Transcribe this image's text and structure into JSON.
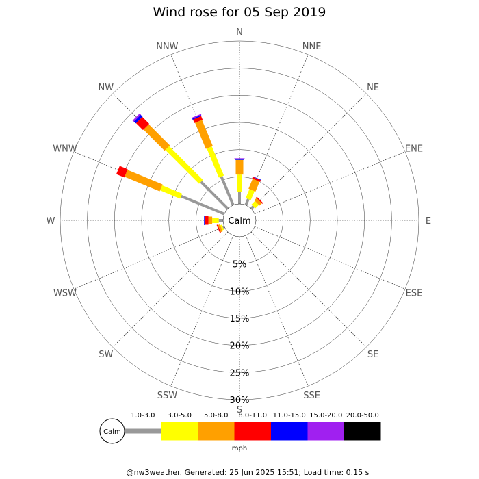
{
  "title": "Wind rose for 05 Sep 2019",
  "footer": "@nw3weather. Generated: 25 Jun 2025 15:51; Load time: 0.15 s",
  "calm_label": "Calm",
  "legend_calm_label": "Calm",
  "unit_label": "mph",
  "directions": [
    "N",
    "NNE",
    "NE",
    "ENE",
    "E",
    "ESE",
    "SE",
    "SSE",
    "S",
    "SSW",
    "SW",
    "WSW",
    "W",
    "WNW",
    "NW",
    "NNW"
  ],
  "ring_labels": [
    "5%",
    "10%",
    "15%",
    "20%",
    "25%",
    "30%"
  ],
  "chart_data": {
    "type": "wind-rose",
    "title": "Wind rose for 05 Sep 2019",
    "unit": "mph",
    "rmax_percent": 30,
    "rings_percent": [
      5,
      10,
      15,
      20,
      25,
      30
    ],
    "speed_bins": [
      {
        "label": "1.0-3.0",
        "color": "#999999"
      },
      {
        "label": "3.0-5.0",
        "color": "#ffff00"
      },
      {
        "label": "5.0-8.0",
        "color": "#ffa000"
      },
      {
        "label": "8.0-11.0",
        "color": "#ff0000"
      },
      {
        "label": "11.0-15.0",
        "color": "#0000ff"
      },
      {
        "label": "15.0-20.0",
        "color": "#a020f0"
      },
      {
        "label": "20.0-50.0",
        "color": "#000000"
      }
    ],
    "cumulative_percent": {
      "N": [
        2.2,
        5.4,
        8.1,
        8.1,
        8.3,
        8.4,
        8.4
      ],
      "NNE": [
        1.2,
        3.0,
        5.0,
        5.3,
        5.4,
        5.4,
        5.4
      ],
      "NE": [
        0.6,
        1.5,
        2.1,
        2.3,
        2.3,
        2.3,
        2.3
      ],
      "ENE": [
        0,
        0,
        0,
        0,
        0,
        0,
        0
      ],
      "E": [
        0,
        0,
        0,
        0,
        0,
        0,
        0
      ],
      "ESE": [
        0,
        0,
        0,
        0,
        0,
        0,
        0
      ],
      "SE": [
        0,
        0,
        0,
        0,
        0,
        0,
        0
      ],
      "SSE": [
        0,
        0,
        0,
        0,
        0,
        0,
        0
      ],
      "S": [
        0,
        0,
        0,
        0,
        0,
        0,
        0
      ],
      "SSW": [
        0,
        0,
        0,
        0,
        0,
        0,
        0
      ],
      "SW": [
        0,
        0,
        0,
        0,
        0,
        0,
        0
      ],
      "WSW": [
        0.3,
        0.6,
        1.0,
        1.2,
        1.2,
        1.2,
        1.2
      ],
      "W": [
        0.8,
        2.0,
        2.7,
        3.3,
        3.5,
        3.5,
        3.5
      ],
      "WNW": [
        8.6,
        12.6,
        19.6,
        21.2,
        21.2,
        21.2,
        21.2
      ],
      "NW": [
        7.0,
        15.8,
        21.3,
        23.1,
        23.6,
        23.9,
        23.9
      ],
      "NNW": [
        5.7,
        11.5,
        16.7,
        17.4,
        17.6,
        17.8,
        17.8
      ]
    }
  }
}
